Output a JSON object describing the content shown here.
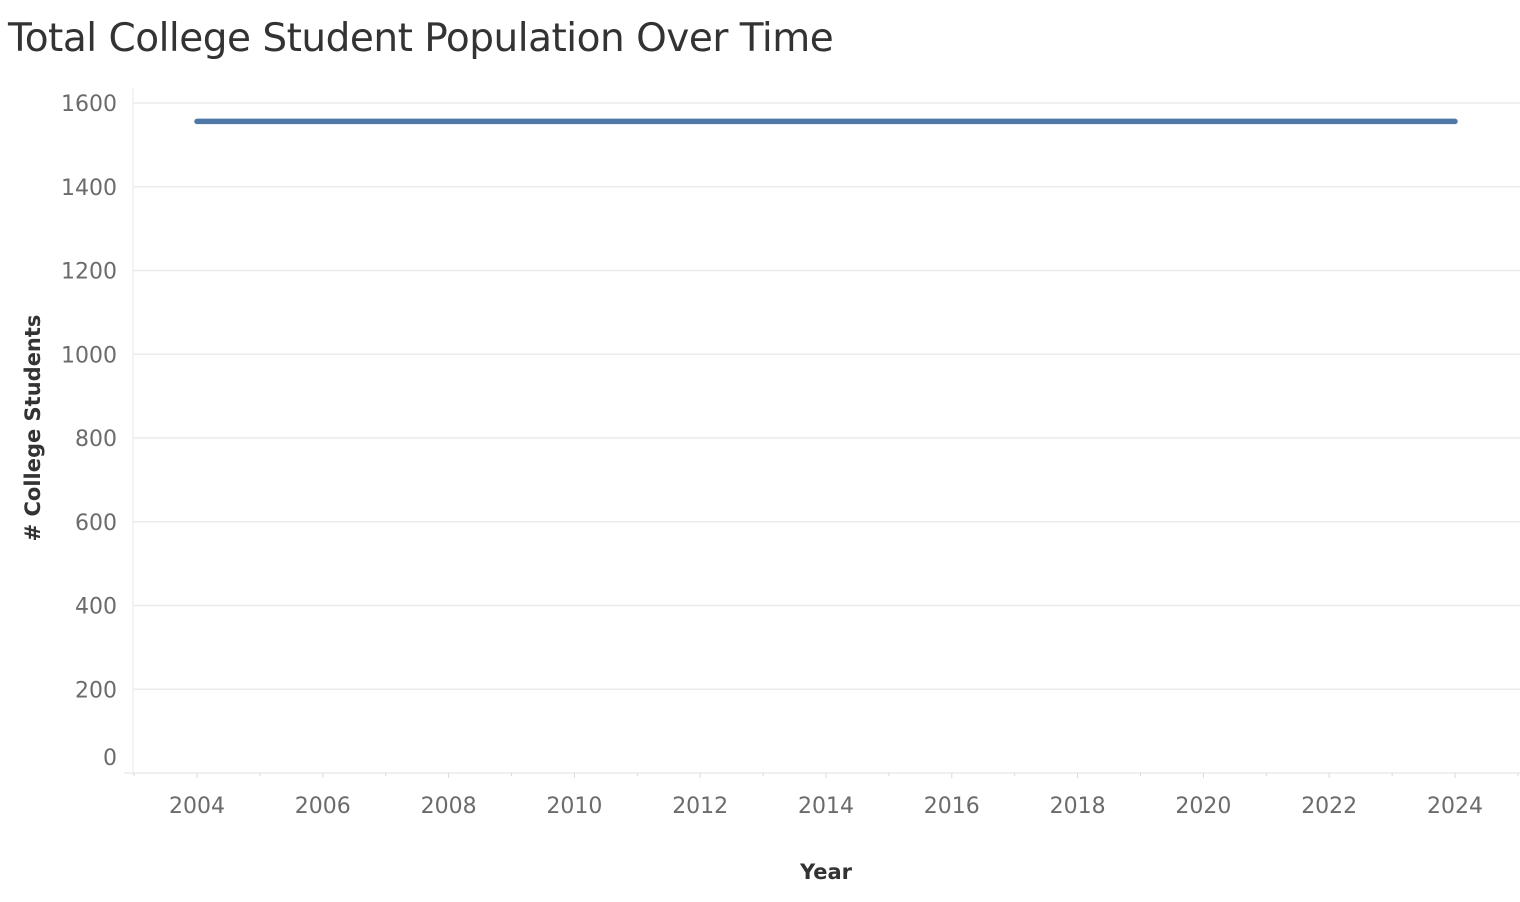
{
  "chart_data": {
    "type": "line",
    "title": "Total College Student Population Over Time",
    "xlabel": "Year",
    "ylabel": "# College Students",
    "x": [
      2004,
      2005,
      2006,
      2007,
      2008,
      2009,
      2010,
      2011,
      2012,
      2013,
      2014,
      2015,
      2016,
      2017,
      2018,
      2019,
      2020,
      2021,
      2022,
      2023,
      2024
    ],
    "series": [
      {
        "values": [
          1556,
          1556,
          1556,
          1556,
          1556,
          1556,
          1556,
          1556,
          1556,
          1556,
          1556,
          1556,
          1556,
          1556,
          1556,
          1556,
          1556,
          1556,
          1556,
          1556,
          1556
        ],
        "color": "#4e79a7"
      }
    ],
    "xticks": [
      2004,
      2006,
      2008,
      2010,
      2012,
      2014,
      2016,
      2018,
      2020,
      2022,
      2024
    ],
    "yticks": [
      0,
      200,
      400,
      600,
      800,
      1000,
      1200,
      1400,
      1600
    ],
    "xlim": [
      2003,
      2025
    ],
    "ylim": [
      0,
      1600
    ],
    "grid": true,
    "colors": {
      "line": "#4e79a7",
      "grid": "#ebebeb",
      "axis": "#d9d9d9",
      "tick_text": "#6b6b6b",
      "title_text": "#333333"
    }
  }
}
